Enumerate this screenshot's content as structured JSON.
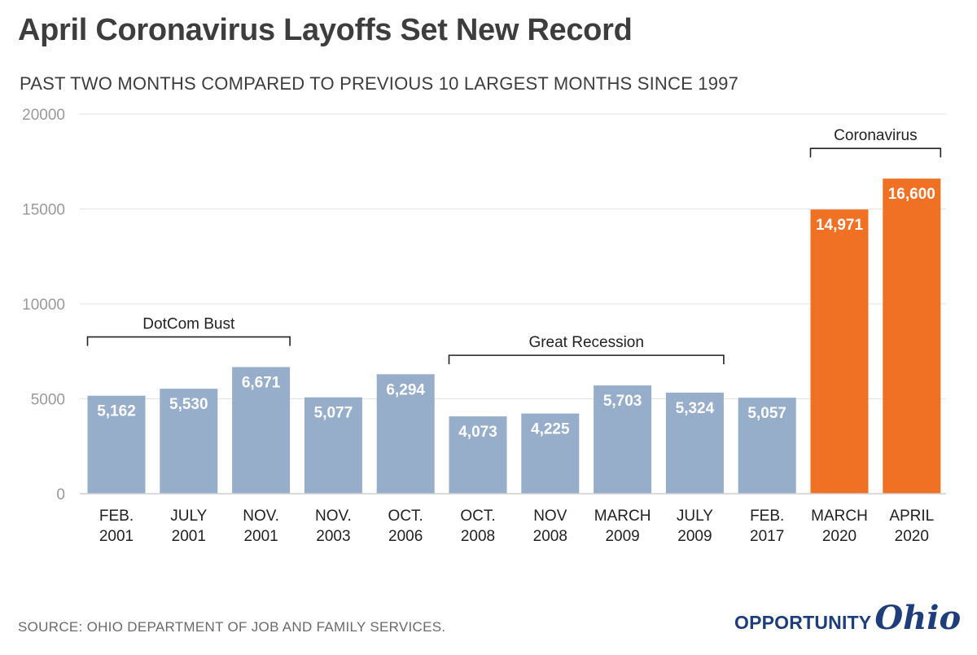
{
  "header": {
    "title": "April Coronavirus Layoffs Set New Record",
    "subtitle": "PAST TWO MONTHS COMPARED TO PREVIOUS 10 LARGEST MONTHS SINCE 1997"
  },
  "footer": {
    "source": "SOURCE: OHIO DEPARTMENT OF JOB AND FAMILY SERVICES.",
    "logo_word": "OPPORTUNITY",
    "logo_script": "Ohio"
  },
  "colors": {
    "normal_bar": "#97aecb",
    "highlight_bar": "#f07124",
    "gridline": "#e3e3e3",
    "axis_tick_text": "#9a9a9a",
    "text_dark": "#222222",
    "logo": "#1e3d7b"
  },
  "chart_data": {
    "type": "bar",
    "title": "April Coronavirus Layoffs Set New Record",
    "subtitle": "PAST TWO MONTHS COMPARED TO PREVIOUS 10 LARGEST MONTHS SINCE 1997",
    "categories": [
      [
        "FEB.",
        "2001"
      ],
      [
        "JULY",
        "2001"
      ],
      [
        "NOV.",
        "2001"
      ],
      [
        "NOV.",
        "2003"
      ],
      [
        "OCT.",
        "2006"
      ],
      [
        "OCT.",
        "2008"
      ],
      [
        "NOV",
        "2008"
      ],
      [
        "MARCH",
        "2009"
      ],
      [
        "JULY",
        "2009"
      ],
      [
        "FEB.",
        "2017"
      ],
      [
        "MARCH",
        "2020"
      ],
      [
        "APRIL",
        "2020"
      ]
    ],
    "values": [
      5162,
      5530,
      6671,
      5077,
      6294,
      4073,
      4225,
      5703,
      5324,
      5057,
      14971,
      16600
    ],
    "data_labels": [
      "5,162",
      "5,530",
      "6,671",
      "5,077",
      "6,294",
      "4,073",
      "4,225",
      "5,703",
      "5,324",
      "5,057",
      "14,971",
      "16,600"
    ],
    "highlight": [
      false,
      false,
      false,
      false,
      false,
      false,
      false,
      false,
      false,
      false,
      true,
      true
    ],
    "ylim": [
      0,
      20000
    ],
    "yticks": [
      0,
      5000,
      10000,
      15000,
      20000
    ],
    "ytick_labels": [
      "0",
      "5000",
      "10000",
      "15000",
      "20000"
    ],
    "grid": true,
    "xlabel": "",
    "ylabel": "",
    "annotations": [
      {
        "label": "DotCom Bust",
        "from": 0,
        "to": 2
      },
      {
        "label": "Great Recession",
        "from": 5,
        "to": 8
      },
      {
        "label": "Coronavirus",
        "from": 10,
        "to": 11
      }
    ]
  }
}
